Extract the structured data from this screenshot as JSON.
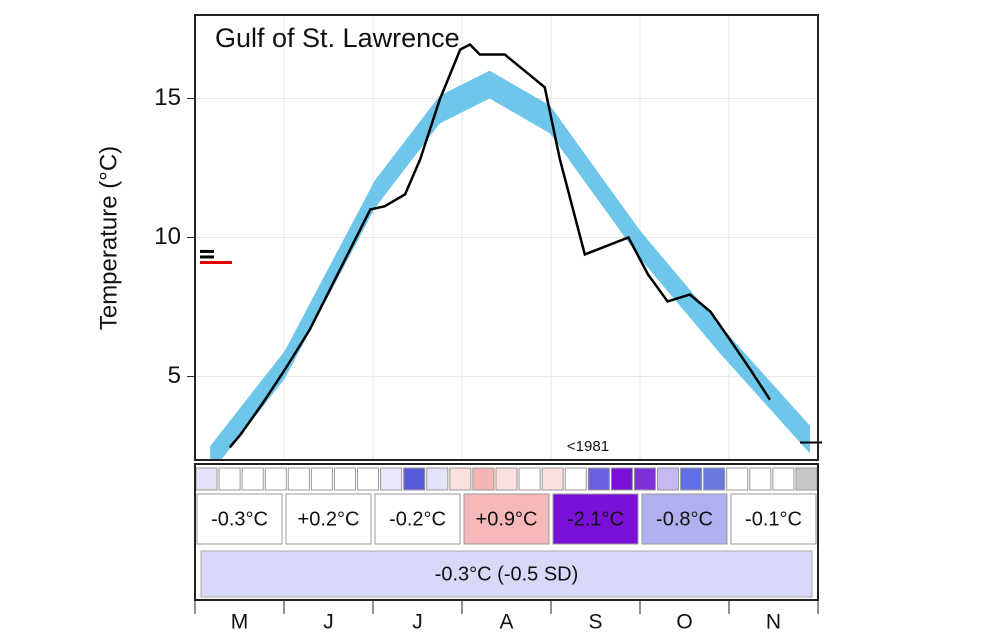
{
  "chart_data": {
    "type": "line",
    "title": "Gulf of St. Lawrence",
    "y_label": "Temperature (°C)",
    "xlim": [
      0,
      7
    ],
    "xticks": [
      0,
      1,
      2,
      3,
      4,
      5,
      6,
      7
    ],
    "ylim": [
      2,
      18
    ],
    "yticks": [
      5,
      10,
      15
    ],
    "grid": true,
    "categories": [
      "M",
      "J",
      "J",
      "A",
      "S",
      "O",
      "N"
    ],
    "climatology": {
      "color": "#6ec6ea",
      "x": [
        0.17,
        1.01,
        2.02,
        2.75,
        3.31,
        3.99,
        5.0,
        5.9,
        6.91
      ],
      "lower": [
        1.5,
        4.93,
        11.05,
        14.1,
        15.0,
        13.74,
        9.25,
        5.83,
        2.23
      ],
      "upper": [
        2.5,
        5.93,
        12.05,
        15.1,
        16.0,
        14.74,
        10.25,
        6.83,
        3.23
      ]
    },
    "series": [
      {
        "color": "#000000",
        "x": [
          0.39,
          0.51,
          0.75,
          1.01,
          1.29,
          1.63,
          1.97,
          2.13,
          2.36,
          2.53,
          2.75,
          2.98,
          3.09,
          3.2,
          3.48,
          3.93,
          4.1,
          4.38,
          4.87,
          5.09,
          5.31,
          5.56,
          5.79,
          6.01,
          6.24,
          6.46
        ],
        "values": [
          2.45,
          2.91,
          3.99,
          5.25,
          6.69,
          8.85,
          11.01,
          11.12,
          11.55,
          12.81,
          14.96,
          16.76,
          16.94,
          16.58,
          16.58,
          15.4,
          12.81,
          9.39,
          10.0,
          8.67,
          7.7,
          7.95,
          7.34,
          6.33,
          5.25,
          4.17
        ]
      }
    ],
    "side_marks": [
      {
        "value": 9.5,
        "color": "#000000"
      },
      {
        "value": 9.3,
        "color": "#000000"
      },
      {
        "value": 9.1,
        "color": "#e00000"
      }
    ],
    "end_mark": {
      "value": 2.63,
      "label": "<1981"
    },
    "weekly_colors": [
      "#e4e4f8",
      "#ffffff",
      "#ffffff",
      "#ffffff",
      "#ffffff",
      "#ffffff",
      "#ffffff",
      "#ffffff",
      "#e8e8fa",
      "#5a5ad8",
      "#e4e4f8",
      "#fbe0e0",
      "#f4b4b4",
      "#fbe0e0",
      "#ffffff",
      "#fbe0e0",
      "#ffffff",
      "#6a60e0",
      "#7a10d8",
      "#8030d8",
      "#c8b8f0",
      "#6070e0",
      "#6a78e0",
      "#ffffff",
      "#ffffff",
      "#ffffff",
      "#c8c8c8"
    ],
    "monthly": {
      "labels": [
        "-0.3°C",
        "+0.2°C",
        "-0.2°C",
        "+0.9°C",
        "-2.1°C",
        "-0.8°C",
        "-0.1°C"
      ],
      "colors": [
        "#ffffff",
        "#ffffff",
        "#ffffff",
        "#f6b8b8",
        "#7a10d8",
        "#b0b0f0",
        "#ffffff"
      ],
      "text_colors": [
        "#111111",
        "#111111",
        "#111111",
        "#ffffff",
        "#ffffff",
        "#111111",
        "#111111"
      ]
    },
    "season": {
      "label": "-0.3°C (-0.5 SD)",
      "color": "#d8d8f8"
    }
  }
}
